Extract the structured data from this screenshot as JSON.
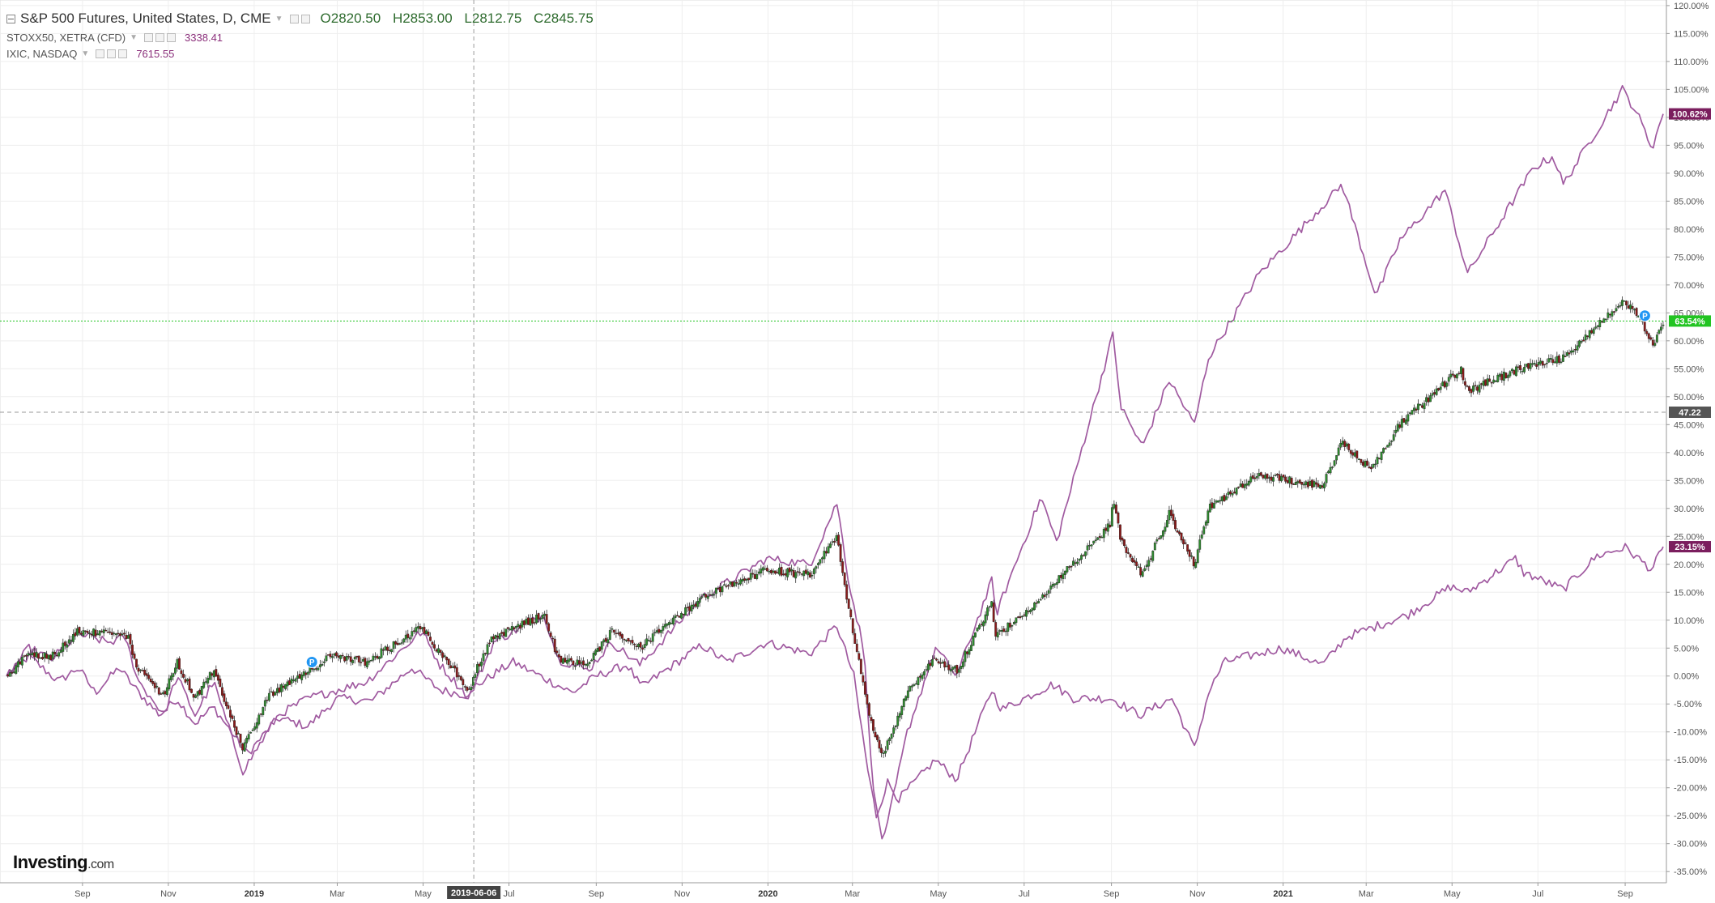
{
  "legend": {
    "main": {
      "title": "S&P 500 Futures, United States, D, CME",
      "open": "O2820.50",
      "high": "H2853.00",
      "low": "L2812.75",
      "close": "C2845.75"
    },
    "overlays": [
      {
        "title": "STOXX50, XETRA (CFD)",
        "value": "3338.41"
      },
      {
        "title": "IXIC, NASDAQ",
        "value": "7615.55"
      }
    ]
  },
  "logo": {
    "name": "Investing",
    "suffix": ".com"
  },
  "colors": {
    "up": "#2e8b2e",
    "down": "#8b1a1a",
    "compare": "#a05aa0",
    "last_line": "#22c422",
    "label_purple": "#7b1e5e",
    "label_gray": "#555555",
    "crosshair_label": "#444444"
  },
  "chart_data": {
    "type": "line",
    "title": "S&P 500 Futures, United States, D, CME",
    "x_tick_labels": [
      "Sep",
      "Nov",
      "2019",
      "Mar",
      "May",
      "Jul",
      "Sep",
      "Nov",
      "2020",
      "Mar",
      "May",
      "Jul",
      "Sep",
      "Nov",
      "2021",
      "Mar",
      "May",
      "Jul",
      "Sep"
    ],
    "x_tick_dates": [
      "2018-09-01",
      "2018-11-01",
      "2019-01-01",
      "2019-03-01",
      "2019-05-01",
      "2019-07-01",
      "2019-09-01",
      "2019-11-01",
      "2020-01-01",
      "2020-03-01",
      "2020-05-01",
      "2020-07-01",
      "2020-09-01",
      "2020-11-01",
      "2021-01-01",
      "2021-03-01",
      "2021-05-01",
      "2021-07-01",
      "2021-09-01"
    ],
    "x_range": [
      "2018-07-09",
      "2021-09-28"
    ],
    "y_label": "%",
    "y_range": [
      -37,
      121
    ],
    "y_ticks": [
      -35,
      -30,
      -25,
      -20,
      -15,
      -10,
      -5,
      0,
      5,
      10,
      15,
      20,
      25,
      30,
      35,
      40,
      45,
      50,
      55,
      60,
      65,
      70,
      75,
      80,
      85,
      90,
      95,
      100,
      105,
      110,
      115,
      120
    ],
    "y_tick_labels": [
      "-35.00%",
      "-30.00%",
      "-25.00%",
      "-20.00%",
      "-15.00%",
      "-10.00%",
      "-5.00%",
      "0.00%",
      "5.00%",
      "10.00%",
      "15.00%",
      "20.00%",
      "25.00%",
      "30.00%",
      "35.00%",
      "40.00%",
      "45.00%",
      "50.00%",
      "55.00%",
      "60.00%",
      "65.00%",
      "70.00%",
      "75.00%",
      "80.00%",
      "85.00%",
      "90.00%",
      "95.00%",
      "100.00%",
      "105.00%",
      "110.00%",
      "115.00%",
      "120.00%"
    ],
    "grid": true,
    "crosshair": {
      "date": "2019-06-06",
      "date_label": "2019-06-06",
      "value": 47.22,
      "value_label": "47.22"
    },
    "last_value_labels": [
      {
        "series": "IXIC, NASDAQ",
        "value": 100.62,
        "label": "100.62%"
      },
      {
        "series": "S&P 500 Futures, United States, D, CME",
        "value": 63.54,
        "label": "63.54%"
      },
      {
        "series": "STOXX50, XETRA (CFD)",
        "value": 23.15,
        "label": "23.15%"
      }
    ],
    "markers": [
      {
        "date": "2019-02-11",
        "value": 2.5,
        "label": "P"
      },
      {
        "date": "2021-09-15",
        "value": 64.5,
        "label": "P"
      }
    ],
    "series": [
      {
        "name": "S&P 500 Futures, United States, D, CME",
        "kind": "candlestick",
        "points": [
          [
            "2018-07-09",
            0
          ],
          [
            "2018-07-25",
            4
          ],
          [
            "2018-08-10",
            3.5
          ],
          [
            "2018-08-29",
            8
          ],
          [
            "2018-09-20",
            7.5
          ],
          [
            "2018-10-03",
            7
          ],
          [
            "2018-10-11",
            1
          ],
          [
            "2018-10-29",
            -3.5
          ],
          [
            "2018-11-07",
            2.5
          ],
          [
            "2018-11-20",
            -4
          ],
          [
            "2018-12-03",
            1
          ],
          [
            "2018-12-24",
            -13
          ],
          [
            "2019-01-10",
            -4
          ],
          [
            "2019-02-01",
            0
          ],
          [
            "2019-02-25",
            3.5
          ],
          [
            "2019-03-22",
            2.5
          ],
          [
            "2019-04-30",
            9
          ],
          [
            "2019-05-13",
            4
          ],
          [
            "2019-06-03",
            -2.5
          ],
          [
            "2019-06-06",
            0.5
          ],
          [
            "2019-06-20",
            7
          ],
          [
            "2019-07-26",
            11
          ],
          [
            "2019-08-05",
            3
          ],
          [
            "2019-08-26",
            2
          ],
          [
            "2019-09-12",
            8
          ],
          [
            "2019-10-02",
            5
          ],
          [
            "2019-11-15",
            14
          ],
          [
            "2019-12-31",
            19
          ],
          [
            "2020-01-31",
            18
          ],
          [
            "2020-02-19",
            25
          ],
          [
            "2020-02-28",
            11
          ],
          [
            "2020-03-09",
            -2
          ],
          [
            "2020-03-16",
            -10
          ],
          [
            "2020-03-23",
            -14
          ],
          [
            "2020-04-09",
            -3
          ],
          [
            "2020-04-29",
            3
          ],
          [
            "2020-05-14",
            1
          ],
          [
            "2020-06-08",
            13
          ],
          [
            "2020-06-11",
            7
          ],
          [
            "2020-07-13",
            14
          ],
          [
            "2020-08-31",
            27
          ],
          [
            "2020-09-02",
            32
          ],
          [
            "2020-09-08",
            24
          ],
          [
            "2020-09-23",
            18
          ],
          [
            "2020-10-12",
            29
          ],
          [
            "2020-10-30",
            20
          ],
          [
            "2020-11-09",
            30
          ],
          [
            "2020-12-15",
            36
          ],
          [
            "2021-01-29",
            34
          ],
          [
            "2021-02-12",
            42
          ],
          [
            "2021-03-04",
            37
          ],
          [
            "2021-03-25",
            45
          ],
          [
            "2021-05-07",
            55
          ],
          [
            "2021-05-12",
            51
          ],
          [
            "2021-06-18",
            55
          ],
          [
            "2021-07-19",
            57
          ],
          [
            "2021-08-30",
            67
          ],
          [
            "2021-09-09",
            65
          ],
          [
            "2021-09-21",
            59.5
          ],
          [
            "2021-09-28",
            63.54
          ]
        ]
      },
      {
        "name": "STOXX50, XETRA (CFD)",
        "kind": "line",
        "points": [
          [
            "2018-07-09",
            0
          ],
          [
            "2018-07-25",
            3.5
          ],
          [
            "2018-08-15",
            -1
          ],
          [
            "2018-08-29",
            1.5
          ],
          [
            "2018-09-10",
            -3
          ],
          [
            "2018-09-27",
            1.5
          ],
          [
            "2018-10-11",
            -3
          ],
          [
            "2018-10-26",
            -7
          ],
          [
            "2018-11-07",
            -4
          ],
          [
            "2018-11-20",
            -8.5
          ],
          [
            "2018-12-03",
            -5.5
          ],
          [
            "2018-12-27",
            -14
          ],
          [
            "2019-01-18",
            -7.5
          ],
          [
            "2019-02-08",
            -9
          ],
          [
            "2019-03-01",
            -4
          ],
          [
            "2019-03-25",
            -4.5
          ],
          [
            "2019-04-23",
            1.5
          ],
          [
            "2019-05-13",
            -2.5
          ],
          [
            "2019-06-03",
            -3.5
          ],
          [
            "2019-06-06",
            -2
          ],
          [
            "2019-06-21",
            0.5
          ],
          [
            "2019-07-04",
            2.5
          ],
          [
            "2019-08-15",
            -3
          ],
          [
            "2019-09-01",
            0
          ],
          [
            "2019-09-23",
            2
          ],
          [
            "2019-10-03",
            -2
          ],
          [
            "2019-11-15",
            5.5
          ],
          [
            "2019-12-03",
            2.5
          ],
          [
            "2019-12-31",
            6
          ],
          [
            "2020-01-31",
            4
          ],
          [
            "2020-02-19",
            9
          ],
          [
            "2020-03-02",
            0
          ],
          [
            "2020-03-12",
            -17
          ],
          [
            "2020-03-18",
            -25
          ],
          [
            "2020-03-26",
            -19
          ],
          [
            "2020-04-03",
            -22
          ],
          [
            "2020-04-29",
            -15
          ],
          [
            "2020-05-14",
            -18.5
          ],
          [
            "2020-06-08",
            -2.5
          ],
          [
            "2020-06-15",
            -6
          ],
          [
            "2020-07-21",
            -1.5
          ],
          [
            "2020-08-05",
            -4
          ],
          [
            "2020-09-01",
            -4
          ],
          [
            "2020-09-21",
            -7
          ],
          [
            "2020-10-14",
            -4
          ],
          [
            "2020-10-30",
            -13
          ],
          [
            "2020-11-09",
            -3
          ],
          [
            "2020-11-20",
            2.5
          ],
          [
            "2020-12-31",
            5
          ],
          [
            "2021-01-29",
            2
          ],
          [
            "2021-02-15",
            7
          ],
          [
            "2021-03-31",
            11
          ],
          [
            "2021-04-30",
            16
          ],
          [
            "2021-05-12",
            15
          ],
          [
            "2021-06-15",
            21
          ],
          [
            "2021-06-21",
            18.5
          ],
          [
            "2021-07-19",
            15.5
          ],
          [
            "2021-08-12",
            21.5
          ],
          [
            "2021-09-01",
            23
          ],
          [
            "2021-09-20",
            19
          ],
          [
            "2021-09-28",
            23.15
          ]
        ]
      },
      {
        "name": "IXIC, NASDAQ",
        "kind": "line",
        "points": [
          [
            "2018-07-09",
            0
          ],
          [
            "2018-07-25",
            5
          ],
          [
            "2018-08-10",
            3
          ],
          [
            "2018-08-29",
            7.5
          ],
          [
            "2018-09-20",
            6
          ],
          [
            "2018-10-01",
            7
          ],
          [
            "2018-10-11",
            -1
          ],
          [
            "2018-10-29",
            -7
          ],
          [
            "2018-11-07",
            0
          ],
          [
            "2018-11-20",
            -7
          ],
          [
            "2018-12-03",
            -1
          ],
          [
            "2018-12-24",
            -17
          ],
          [
            "2019-01-18",
            -7
          ],
          [
            "2019-02-08",
            -4
          ],
          [
            "2019-03-22",
            -1
          ],
          [
            "2019-04-30",
            8
          ],
          [
            "2019-05-13",
            2
          ],
          [
            "2019-06-03",
            -4
          ],
          [
            "2019-06-06",
            -2
          ],
          [
            "2019-06-20",
            6
          ],
          [
            "2019-07-26",
            11
          ],
          [
            "2019-08-05",
            3
          ],
          [
            "2019-08-26",
            1
          ],
          [
            "2019-09-12",
            6
          ],
          [
            "2019-10-02",
            2
          ],
          [
            "2019-11-15",
            14
          ],
          [
            "2019-12-31",
            21
          ],
          [
            "2020-01-31",
            20
          ],
          [
            "2020-02-19",
            31
          ],
          [
            "2020-02-28",
            16
          ],
          [
            "2020-03-09",
            5
          ],
          [
            "2020-03-16",
            -21
          ],
          [
            "2020-03-23",
            -30
          ],
          [
            "2020-04-09",
            -10
          ],
          [
            "2020-04-29",
            5
          ],
          [
            "2020-05-14",
            0
          ],
          [
            "2020-06-08",
            17
          ],
          [
            "2020-06-11",
            11
          ],
          [
            "2020-07-13",
            32
          ],
          [
            "2020-07-24",
            24
          ],
          [
            "2020-09-02",
            61
          ],
          [
            "2020-09-08",
            48
          ],
          [
            "2020-09-23",
            41
          ],
          [
            "2020-10-12",
            53
          ],
          [
            "2020-10-30",
            45
          ],
          [
            "2020-11-09",
            57
          ],
          [
            "2020-12-15",
            72
          ],
          [
            "2021-02-12",
            88
          ],
          [
            "2021-03-08",
            68
          ],
          [
            "2021-03-25",
            78
          ],
          [
            "2021-04-26",
            87
          ],
          [
            "2021-05-12",
            72
          ],
          [
            "2021-06-28",
            91
          ],
          [
            "2021-07-12",
            93
          ],
          [
            "2021-07-19",
            88
          ],
          [
            "2021-08-30",
            105
          ],
          [
            "2021-09-09",
            101
          ],
          [
            "2021-09-20",
            94.5
          ],
          [
            "2021-09-28",
            100.62
          ]
        ]
      }
    ]
  }
}
